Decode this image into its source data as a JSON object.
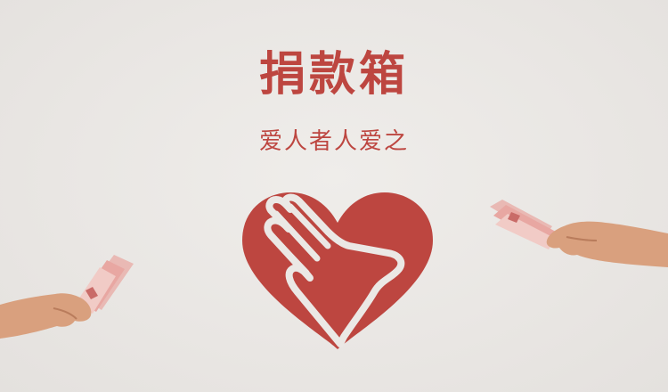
{
  "banner": {
    "title": "捐款箱",
    "subtitle": "爱人者人爱之"
  },
  "colors": {
    "accent": "#bd4640",
    "background": "#ebe8e5"
  },
  "icons": {
    "logo": "heart-hand-icon",
    "left_hand": "hand-with-banknotes-icon",
    "right_hand": "hand-with-banknotes-icon"
  }
}
